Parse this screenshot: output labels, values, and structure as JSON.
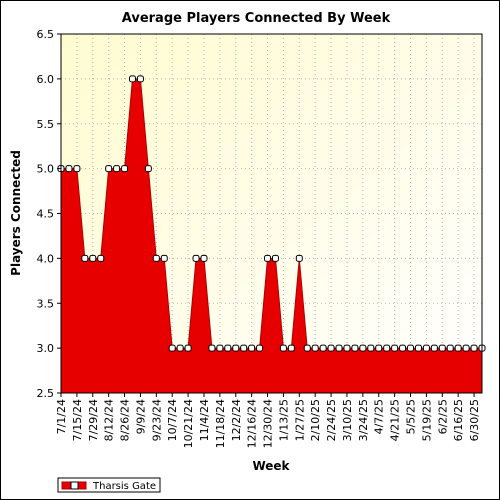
{
  "chart_data": {
    "type": "area",
    "title": "Average Players Connected By Week",
    "xlabel": "Week",
    "ylabel": "Players Connected",
    "ylim": [
      2.5,
      6.5
    ],
    "y_ticks": [
      "2.5",
      "3.0",
      "3.5",
      "4.0",
      "4.5",
      "5.0",
      "5.5",
      "6.0",
      "6.5"
    ],
    "x_tick_labels": [
      "7/1/24",
      "7/15/24",
      "7/29/24",
      "8/12/24",
      "8/26/24",
      "9/9/24",
      "9/23/24",
      "10/7/24",
      "10/21/24",
      "11/4/24",
      "11/18/24",
      "12/2/24",
      "12/16/24",
      "12/30/24",
      "1/13/25",
      "1/27/25",
      "2/10/25",
      "2/24/25",
      "3/10/25",
      "3/24/25",
      "4/7/25",
      "4/21/25",
      "5/5/25",
      "5/19/25",
      "6/2/25",
      "6/16/25",
      "6/30/25"
    ],
    "grid": true,
    "legend_placement": "bottom-left",
    "colors": {
      "series": "#e60000",
      "plot_bg_top": "#fffbd0",
      "plot_bg_bottom": "#ffffff",
      "grid": "#b4b4b4"
    },
    "series": [
      {
        "name": "Tharsis Gate",
        "values": [
          5,
          5,
          5,
          4,
          4,
          4,
          5,
          5,
          5,
          6,
          6,
          5,
          4,
          4,
          3,
          3,
          3,
          4,
          4,
          3,
          3,
          3,
          3,
          3,
          3,
          3,
          4,
          4,
          3,
          3,
          4,
          3,
          3,
          3,
          3,
          3,
          3,
          3,
          3,
          3,
          3,
          3,
          3,
          3,
          3,
          3,
          3,
          3,
          3,
          3,
          3,
          3,
          3,
          3
        ]
      }
    ]
  }
}
